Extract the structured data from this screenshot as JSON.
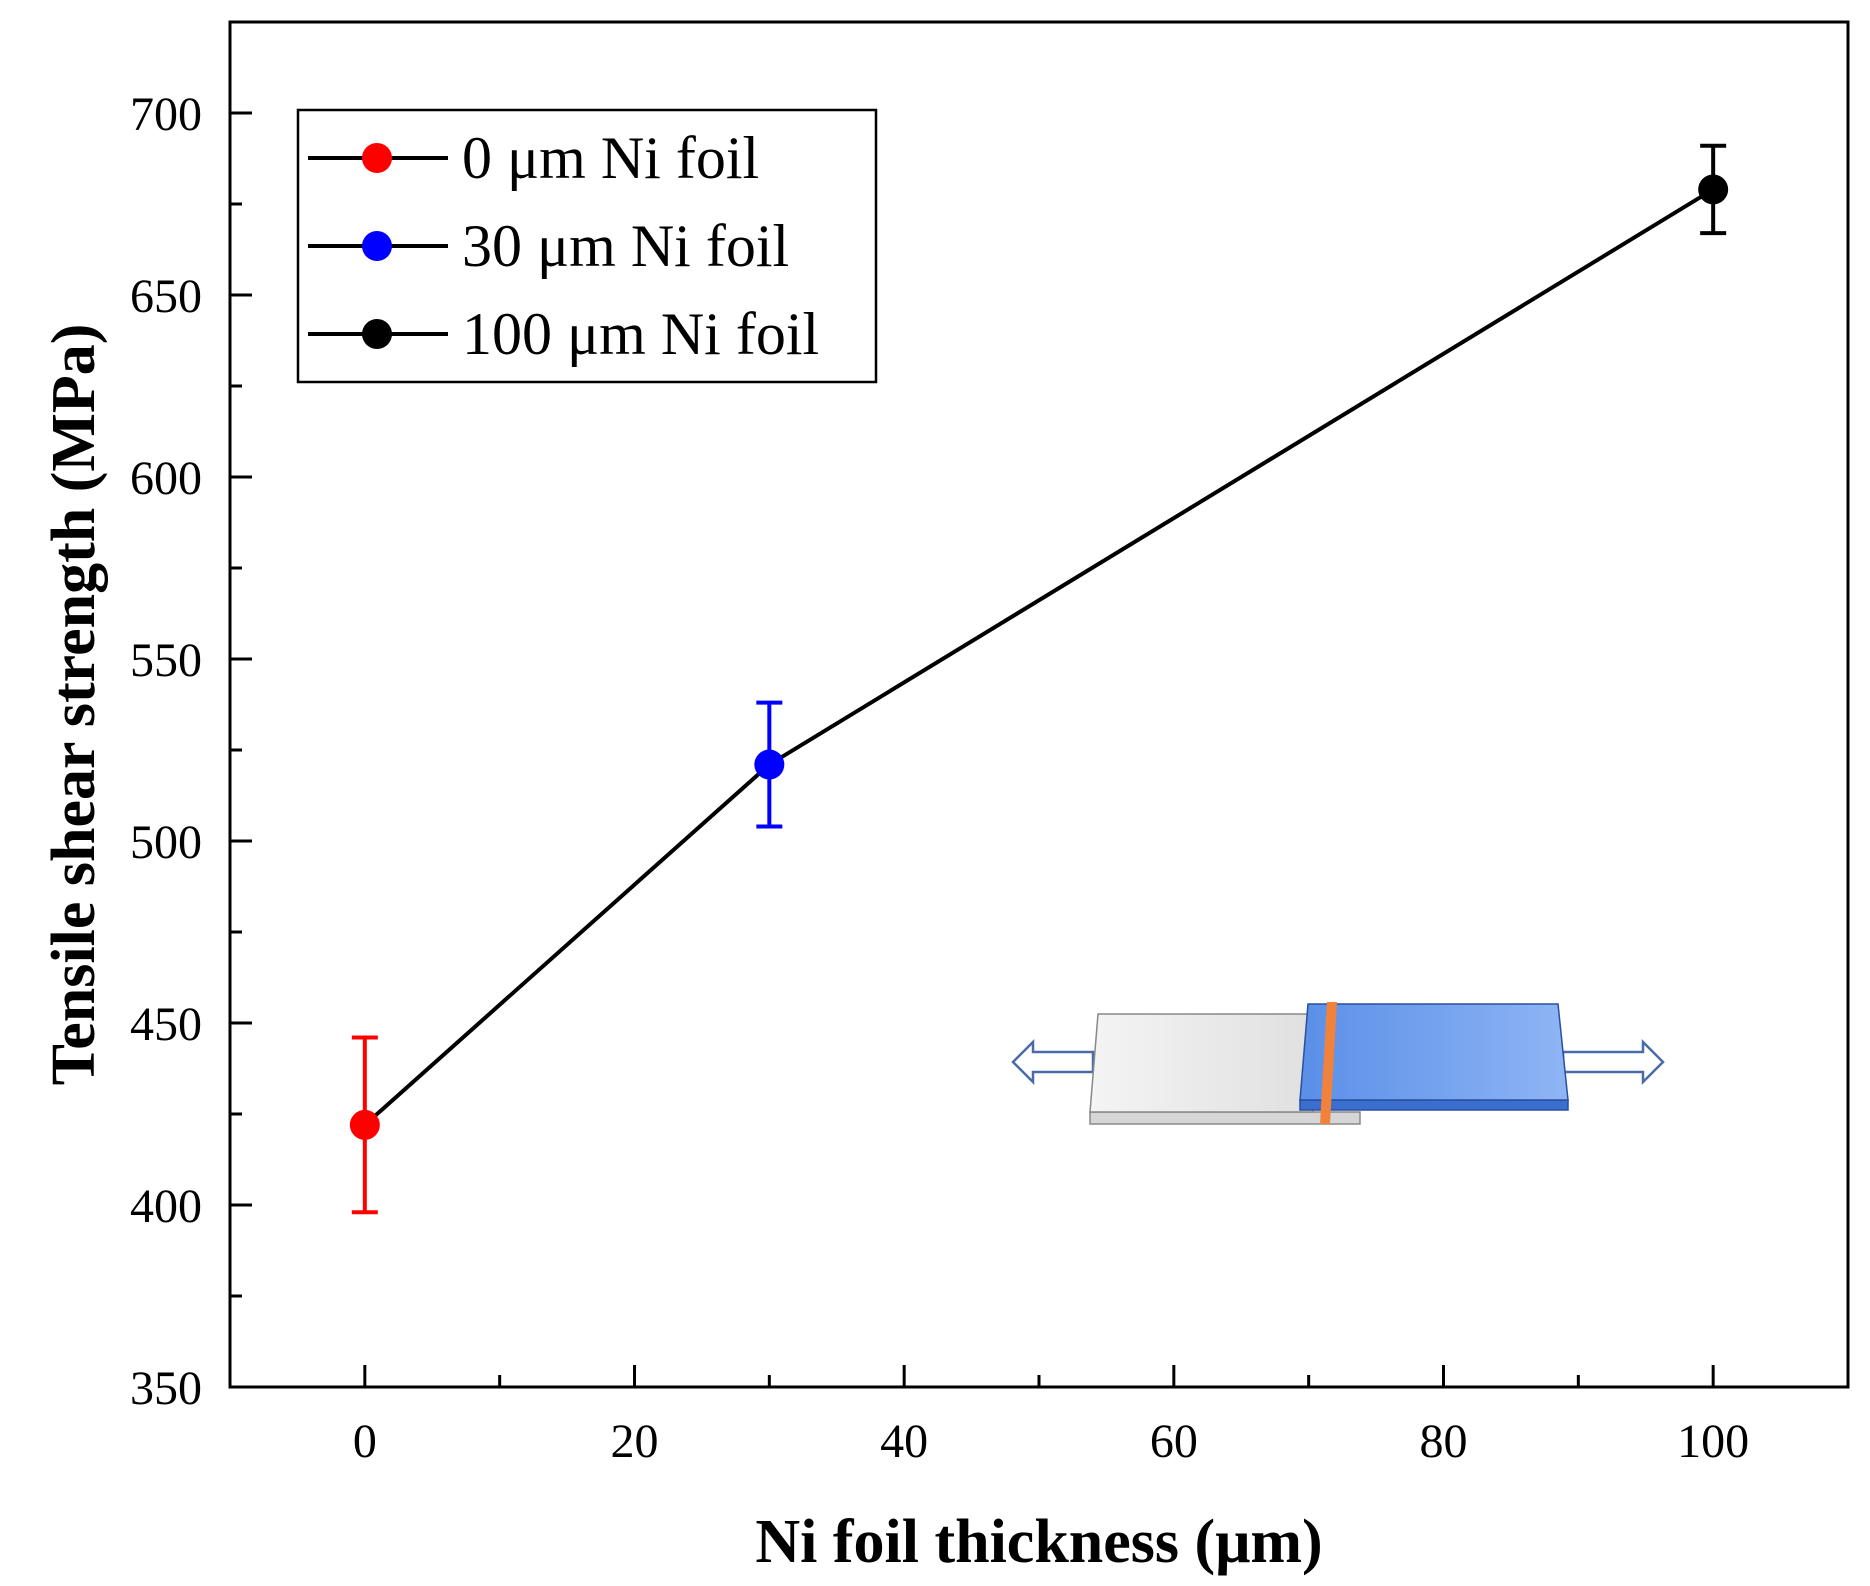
{
  "chart_data": {
    "type": "line",
    "xlabel": "Ni foil thickness (μm)",
    "ylabel": "Tensile shear strength (MPa)",
    "xlim": [
      -10,
      110
    ],
    "ylim": [
      350,
      725
    ],
    "x_ticks": [
      0,
      20,
      40,
      60,
      80,
      100
    ],
    "y_ticks": [
      350,
      400,
      450,
      500,
      550,
      600,
      650,
      700
    ],
    "x_tick_labels": [
      "0",
      "20",
      "40",
      "60",
      "80",
      "100"
    ],
    "y_tick_labels": [
      "350",
      "400",
      "450",
      "500",
      "550",
      "600",
      "650",
      "700"
    ],
    "x_minor_ticks": [
      10,
      30,
      50,
      70,
      90
    ],
    "y_minor_ticks": [
      375,
      425,
      475,
      525,
      575,
      625,
      675
    ],
    "grid": false,
    "legend_position": "top-left",
    "line_color": "#000000",
    "points": [
      {
        "label": "0 μm Ni foil",
        "x": 0,
        "y": 422,
        "err": 24,
        "color": "#ff0000"
      },
      {
        "label": "30 μm Ni foil",
        "x": 30,
        "y": 521,
        "err": 17,
        "color": "#0000ff"
      },
      {
        "label": "100 μm Ni foil",
        "x": 100,
        "y": 679,
        "err": 12,
        "color": "#000000"
      }
    ],
    "inset": {
      "description_icon": "lap-shear-specimen-icon",
      "left_plate_color": "#e0e0e0",
      "right_plate_color": "#6a9cf0",
      "foil_color": "#f0823c",
      "arrow_color": "#4a6aa8"
    }
  }
}
